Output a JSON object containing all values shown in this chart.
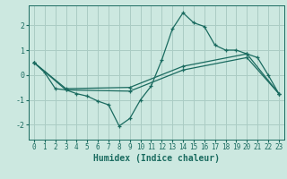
{
  "xlabel": "Humidex (Indice chaleur)",
  "background_color": "#cce8e0",
  "grid_color": "#aaccc4",
  "line_color": "#1a6b60",
  "xlim": [
    -0.5,
    23.5
  ],
  "ylim": [
    -2.6,
    2.8
  ],
  "yticks": [
    -2,
    -1,
    0,
    1,
    2
  ],
  "xticks": [
    0,
    1,
    2,
    3,
    4,
    5,
    6,
    7,
    8,
    9,
    10,
    11,
    12,
    13,
    14,
    15,
    16,
    17,
    18,
    19,
    20,
    21,
    22,
    23
  ],
  "line1_x": [
    0,
    1,
    2,
    3,
    4,
    5,
    6,
    7,
    8,
    9,
    10,
    11,
    12,
    13,
    14,
    15,
    16,
    17,
    18,
    19,
    20,
    21,
    22,
    23
  ],
  "line1_y": [
    0.5,
    0.1,
    -0.55,
    -0.6,
    -0.75,
    -0.85,
    -1.05,
    -1.2,
    -2.05,
    -1.75,
    -1.0,
    -0.45,
    0.6,
    1.85,
    2.5,
    2.1,
    1.95,
    1.2,
    1.0,
    1.0,
    0.85,
    0.7,
    0.0,
    -0.75
  ],
  "line2_x": [
    0,
    3,
    9,
    14,
    20,
    23
  ],
  "line2_y": [
    0.5,
    -0.55,
    -0.5,
    0.35,
    0.85,
    -0.75
  ],
  "line3_x": [
    0,
    3,
    9,
    14,
    20,
    23
  ],
  "line3_y": [
    0.5,
    -0.6,
    -0.65,
    0.2,
    0.7,
    -0.75
  ],
  "xlabel_fontsize": 7,
  "tick_fontsize": 6.0
}
